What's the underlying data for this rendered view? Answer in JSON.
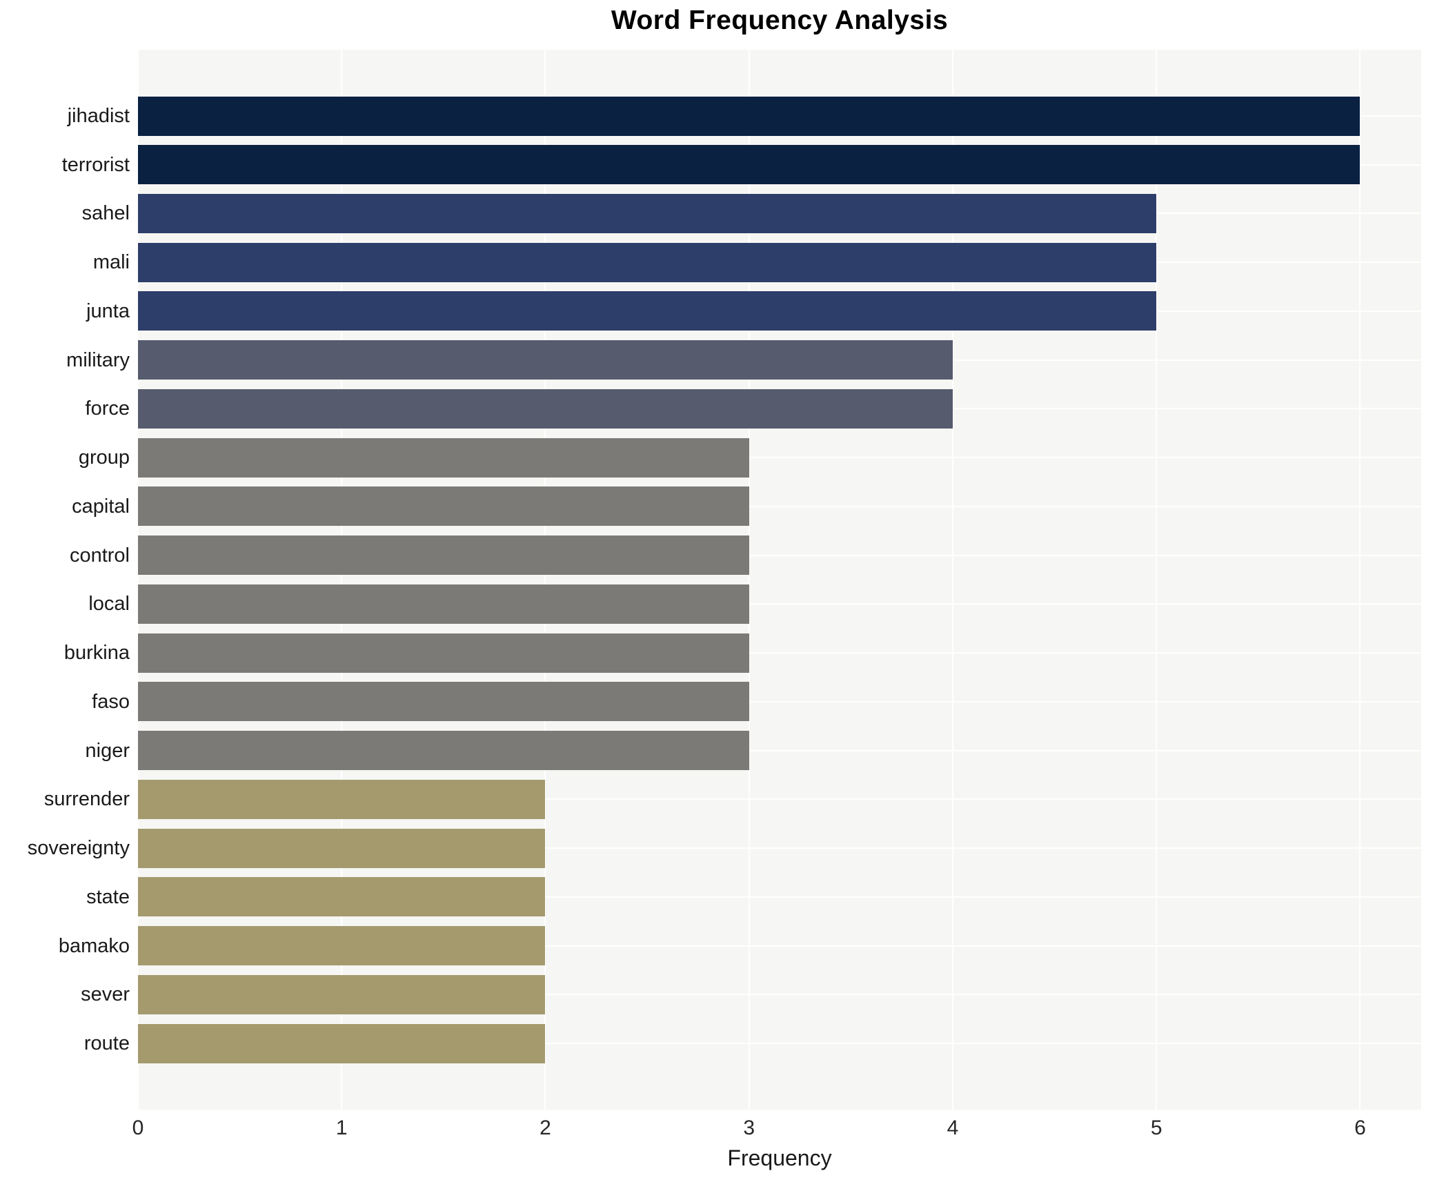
{
  "chart_data": {
    "type": "bar",
    "orientation": "horizontal",
    "title": "Word Frequency Analysis",
    "xlabel": "Frequency",
    "ylabel": "",
    "categories": [
      "jihadist",
      "terrorist",
      "sahel",
      "mali",
      "junta",
      "military",
      "force",
      "group",
      "capital",
      "control",
      "local",
      "burkina",
      "faso",
      "niger",
      "surrender",
      "sovereignty",
      "state",
      "bamako",
      "sever",
      "route"
    ],
    "values": [
      6,
      6,
      5,
      5,
      5,
      4,
      4,
      3,
      3,
      3,
      3,
      3,
      3,
      3,
      2,
      2,
      2,
      2,
      2,
      2
    ],
    "bar_colors": [
      "#0a2142",
      "#0a2142",
      "#2e3e6a",
      "#2e3e6a",
      "#2e3e6a",
      "#565b6d",
      "#565b6d",
      "#7b7a76",
      "#7b7a76",
      "#7b7a76",
      "#7b7a76",
      "#7b7a76",
      "#7b7a76",
      "#7b7a76",
      "#a49a6e",
      "#a49a6e",
      "#a49a6e",
      "#a49a6e",
      "#a49a6e",
      "#a49a6e"
    ],
    "xticks": [
      0,
      1,
      2,
      3,
      4,
      5,
      6
    ],
    "xlim": [
      0,
      6.3
    ],
    "grid": true,
    "legend": "none",
    "plot_background": "#f6f6f4",
    "grid_color": "#ffffff"
  }
}
